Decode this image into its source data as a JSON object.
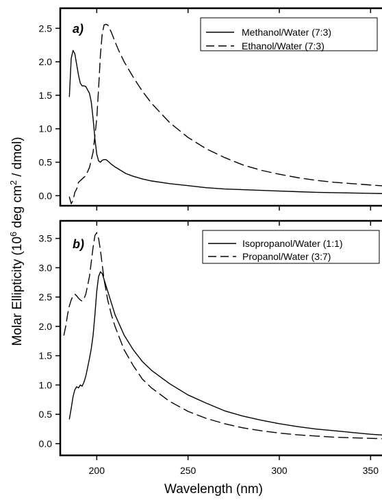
{
  "figure": {
    "ylabel_prefix": "Molar Ellipticity (10",
    "ylabel_sup1": "6",
    "ylabel_mid": " deg cm",
    "ylabel_sup2": "2",
    "ylabel_suffix": " / dmol)",
    "xlabel": "Wavelength (nm)"
  },
  "chart_data": [
    {
      "type": "line",
      "panel_label": "a)",
      "xlim": [
        180,
        360
      ],
      "ylim": [
        -0.15,
        2.8
      ],
      "x_ticks": [
        200,
        250,
        300,
        350
      ],
      "x_tick_labels": [
        "200",
        "250",
        "300",
        "350"
      ],
      "y_ticks": [
        0.0,
        0.5,
        1.0,
        1.5,
        2.0,
        2.5
      ],
      "y_tick_labels": [
        "0.0",
        "0.5",
        "1.0",
        "1.5",
        "2.0",
        "2.5"
      ],
      "legend_position": "top-right",
      "series": [
        {
          "name": "Methanol/Water (7:3)",
          "style": "solid",
          "x": [
            185,
            186,
            187,
            188,
            189,
            190,
            191,
            192,
            193,
            194,
            195,
            196,
            197,
            198,
            199,
            200,
            201,
            202,
            203,
            204,
            205,
            206,
            208,
            210,
            213,
            216,
            220,
            225,
            230,
            240,
            250,
            260,
            270,
            280,
            290,
            300,
            310,
            320,
            330,
            340,
            350,
            360
          ],
          "y": [
            1.48,
            2.05,
            2.17,
            2.12,
            1.96,
            1.8,
            1.68,
            1.64,
            1.64,
            1.63,
            1.58,
            1.53,
            1.4,
            1.15,
            0.85,
            0.62,
            0.52,
            0.5,
            0.53,
            0.54,
            0.54,
            0.52,
            0.47,
            0.43,
            0.38,
            0.33,
            0.29,
            0.25,
            0.22,
            0.18,
            0.15,
            0.12,
            0.1,
            0.09,
            0.08,
            0.07,
            0.06,
            0.05,
            0.045,
            0.04,
            0.035,
            0.03
          ]
        },
        {
          "name": "Ethanol/Water (7:3)",
          "style": "dashed",
          "x": [
            185,
            186,
            187,
            188,
            189,
            190,
            192,
            194,
            196,
            198,
            200,
            201,
            202,
            203,
            204,
            205,
            206,
            207,
            208,
            210,
            212,
            215,
            220,
            225,
            230,
            240,
            250,
            260,
            270,
            280,
            290,
            300,
            310,
            320,
            330,
            340,
            350,
            360
          ],
          "y": [
            -0.02,
            -0.12,
            -0.07,
            0.05,
            0.1,
            0.2,
            0.25,
            0.3,
            0.42,
            0.65,
            1.15,
            1.6,
            2.1,
            2.42,
            2.55,
            2.56,
            2.55,
            2.5,
            2.44,
            2.3,
            2.17,
            2.0,
            1.77,
            1.56,
            1.38,
            1.09,
            0.87,
            0.7,
            0.57,
            0.46,
            0.38,
            0.32,
            0.27,
            0.23,
            0.2,
            0.18,
            0.16,
            0.14
          ]
        }
      ]
    },
    {
      "type": "line",
      "panel_label": "b)",
      "xlim": [
        180,
        360
      ],
      "ylim": [
        -0.2,
        3.8
      ],
      "x_ticks": [
        200,
        250,
        300,
        350
      ],
      "x_tick_labels": [
        "200",
        "250",
        "300",
        "350"
      ],
      "y_ticks": [
        0.0,
        0.5,
        1.0,
        1.5,
        2.0,
        2.5,
        3.0,
        3.5
      ],
      "y_tick_labels": [
        "0.0",
        "0.5",
        "1.0",
        "1.5",
        "2.0",
        "2.5",
        "3.0",
        "3.5"
      ],
      "legend_position": "top-right",
      "series": [
        {
          "name": "Isopropanol/Water (1:1)",
          "style": "solid",
          "x": [
            185,
            186,
            187,
            188,
            189,
            190,
            191,
            192,
            193,
            194,
            195,
            196,
            197,
            198,
            199,
            200,
            201,
            202,
            203,
            204,
            206,
            208,
            210,
            215,
            220,
            225,
            230,
            240,
            250,
            260,
            270,
            280,
            290,
            300,
            310,
            320,
            330,
            340,
            350,
            360
          ],
          "y": [
            0.42,
            0.6,
            0.8,
            0.92,
            0.97,
            0.95,
            1.0,
            0.98,
            1.05,
            1.15,
            1.3,
            1.45,
            1.62,
            1.85,
            2.2,
            2.6,
            2.85,
            2.93,
            2.9,
            2.8,
            2.6,
            2.4,
            2.2,
            1.85,
            1.6,
            1.4,
            1.25,
            1.02,
            0.83,
            0.69,
            0.56,
            0.47,
            0.4,
            0.34,
            0.29,
            0.25,
            0.22,
            0.19,
            0.16,
            0.14
          ]
        },
        {
          "name": "Propanol/Water (3:7)",
          "style": "dashed",
          "x": [
            182,
            183,
            184,
            185,
            186,
            187,
            188,
            189,
            190,
            191,
            192,
            193,
            194,
            195,
            196,
            197,
            198,
            199,
            200,
            201,
            202,
            203,
            204,
            206,
            208,
            210,
            215,
            220,
            225,
            230,
            240,
            250,
            260,
            270,
            280,
            290,
            300,
            310,
            320,
            330,
            340,
            350,
            360
          ],
          "y": [
            1.85,
            2.0,
            2.2,
            2.35,
            2.45,
            2.52,
            2.55,
            2.52,
            2.48,
            2.45,
            2.43,
            2.47,
            2.55,
            2.7,
            2.85,
            3.1,
            3.35,
            3.55,
            3.6,
            3.5,
            3.3,
            3.05,
            2.8,
            2.45,
            2.2,
            2.0,
            1.6,
            1.33,
            1.1,
            0.95,
            0.72,
            0.55,
            0.43,
            0.34,
            0.27,
            0.22,
            0.18,
            0.15,
            0.13,
            0.11,
            0.1,
            0.09,
            0.08
          ]
        }
      ]
    }
  ]
}
